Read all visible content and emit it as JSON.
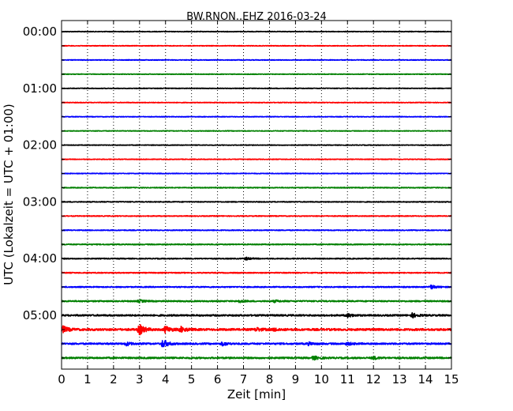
{
  "chart_data": {
    "type": "line",
    "title": "BW.RNON..EHZ 2016-03-24",
    "xlabel": "Zeit  [min]",
    "ylabel": "UTC (Lokalzeit = UTC + 01:00)",
    "xlim": [
      0,
      15
    ],
    "x_ticks": [
      "0",
      "1",
      "2",
      "3",
      "4",
      "5",
      "6",
      "7",
      "8",
      "9",
      "10",
      "11",
      "12",
      "13",
      "14",
      "15"
    ],
    "y_ticks": [
      "00:00",
      "01:00",
      "02:00",
      "03:00",
      "04:00",
      "05:00"
    ],
    "grid": "vertical dotted",
    "trace_interval_min": 15,
    "colors": [
      "#000000",
      "#ff0000",
      "#0000ff",
      "#008000"
    ],
    "traces": [
      {
        "start": "00:00",
        "color": "#000000",
        "noise": 0.4,
        "events": []
      },
      {
        "start": "00:15",
        "color": "#ff0000",
        "noise": 0.4,
        "events": []
      },
      {
        "start": "00:30",
        "color": "#0000ff",
        "noise": 0.4,
        "events": []
      },
      {
        "start": "00:45",
        "color": "#008000",
        "noise": 0.4,
        "events": []
      },
      {
        "start": "01:00",
        "color": "#000000",
        "noise": 0.4,
        "events": []
      },
      {
        "start": "01:15",
        "color": "#ff0000",
        "noise": 0.4,
        "events": []
      },
      {
        "start": "01:30",
        "color": "#0000ff",
        "noise": 0.4,
        "events": []
      },
      {
        "start": "01:45",
        "color": "#008000",
        "noise": 0.4,
        "events": []
      },
      {
        "start": "02:00",
        "color": "#000000",
        "noise": 0.4,
        "events": []
      },
      {
        "start": "02:15",
        "color": "#ff0000",
        "noise": 0.4,
        "events": []
      },
      {
        "start": "02:30",
        "color": "#0000ff",
        "noise": 0.4,
        "events": []
      },
      {
        "start": "02:45",
        "color": "#008000",
        "noise": 0.5,
        "events": []
      },
      {
        "start": "03:00",
        "color": "#000000",
        "noise": 0.5,
        "events": []
      },
      {
        "start": "03:15",
        "color": "#ff0000",
        "noise": 0.5,
        "events": []
      },
      {
        "start": "03:30",
        "color": "#0000ff",
        "noise": 0.5,
        "events": []
      },
      {
        "start": "03:45",
        "color": "#008000",
        "noise": 0.6,
        "events": []
      },
      {
        "start": "04:00",
        "color": "#000000",
        "noise": 0.6,
        "events": [
          {
            "t": 7.1,
            "amp": 1.5
          }
        ]
      },
      {
        "start": "04:15",
        "color": "#ff0000",
        "noise": 0.6,
        "events": []
      },
      {
        "start": "04:30",
        "color": "#0000ff",
        "noise": 0.7,
        "events": [
          {
            "t": 14.2,
            "amp": 2.5
          }
        ]
      },
      {
        "start": "04:45",
        "color": "#008000",
        "noise": 0.8,
        "events": [
          {
            "t": 3.0,
            "amp": 1.5
          },
          {
            "t": 6.8,
            "amp": 1.5
          },
          {
            "t": 8.2,
            "amp": 1.2
          }
        ]
      },
      {
        "start": "05:00",
        "color": "#000000",
        "noise": 1.0,
        "events": [
          {
            "t": 11.0,
            "amp": 2.0
          },
          {
            "t": 13.5,
            "amp": 2.5
          }
        ]
      },
      {
        "start": "05:15",
        "color": "#ff0000",
        "noise": 1.3,
        "events": [
          {
            "t": 0.05,
            "amp": 4.0
          },
          {
            "t": 3.0,
            "amp": 6.0
          },
          {
            "t": 4.0,
            "amp": 4.0
          },
          {
            "t": 4.6,
            "amp": 3.0
          },
          {
            "t": 7.5,
            "amp": 2.0
          },
          {
            "t": 8.2,
            "amp": 1.5
          }
        ]
      },
      {
        "start": "05:30",
        "color": "#0000ff",
        "noise": 1.0,
        "events": [
          {
            "t": 2.5,
            "amp": 2.0
          },
          {
            "t": 3.9,
            "amp": 5.0
          },
          {
            "t": 6.2,
            "amp": 2.0
          },
          {
            "t": 9.5,
            "amp": 1.5
          },
          {
            "t": 11.0,
            "amp": 1.5
          }
        ]
      },
      {
        "start": "05:45",
        "color": "#008000",
        "noise": 1.0,
        "events": [
          {
            "t": 9.7,
            "amp": 2.0
          },
          {
            "t": 12.0,
            "amp": 1.5
          }
        ]
      }
    ]
  }
}
